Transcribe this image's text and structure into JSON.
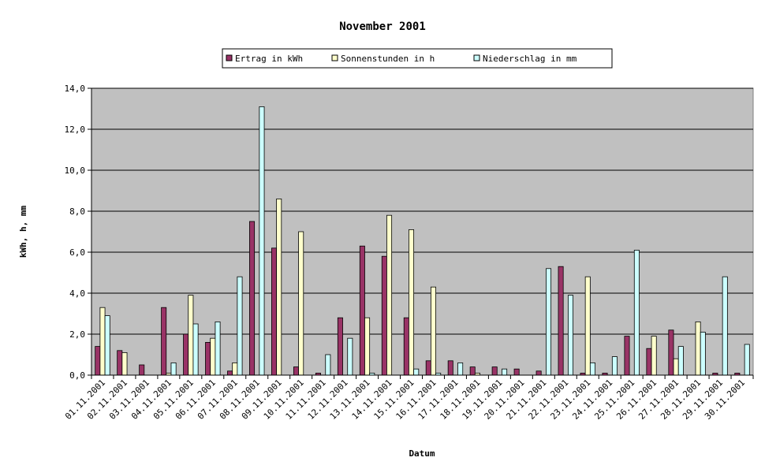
{
  "chart_data": {
    "type": "bar",
    "title": "November 2001",
    "xlabel": "Datum",
    "ylabel": "kWh, h, mm",
    "ylim": [
      0,
      14
    ],
    "yticks": [
      "0,0",
      "2,0",
      "4,0",
      "6,0",
      "8,0",
      "10,0",
      "12,0",
      "14,0"
    ],
    "grid": true,
    "legend_position": "top-center",
    "categories": [
      "01.11.2001",
      "02.11.2001",
      "03.11.2001",
      "04.11.2001",
      "05.11.2001",
      "06.11.2001",
      "07.11.2001",
      "08.11.2001",
      "09.11.2001",
      "10.11.2001",
      "11.11.2001",
      "12.11.2001",
      "13.11.2001",
      "14.11.2001",
      "15.11.2001",
      "16.11.2001",
      "17.11.2001",
      "18.11.2001",
      "19.11.2001",
      "20.11.2001",
      "21.11.2001",
      "22.11.2001",
      "23.11.2001",
      "24.11.2001",
      "25.11.2001",
      "26.11.2001",
      "27.11.2001",
      "28.11.2001",
      "29.11.2001",
      "30.11.2001"
    ],
    "series": [
      {
        "name": "Ertrag in kWh",
        "color": "#993366",
        "values": [
          1.4,
          1.2,
          0.5,
          3.3,
          2.0,
          1.6,
          0.2,
          7.5,
          6.2,
          0.4,
          0.1,
          2.8,
          6.3,
          5.8,
          2.8,
          0.7,
          0.7,
          0.4,
          0.4,
          0.3,
          0.2,
          5.3,
          0.1,
          0.1,
          1.9,
          1.3,
          2.2,
          0.0,
          0.1,
          0.1
        ]
      },
      {
        "name": "Sonnenstunden in h",
        "color": "#ffffcc",
        "values": [
          3.3,
          1.1,
          0.0,
          0.1,
          3.9,
          1.8,
          0.6,
          0.0,
          8.6,
          7.0,
          0.0,
          0.0,
          2.8,
          7.8,
          7.1,
          4.3,
          0.0,
          0.1,
          0.0,
          0.0,
          0.0,
          0.0,
          4.8,
          0.0,
          0.0,
          1.9,
          0.8,
          2.6,
          0.0,
          0.0
        ]
      },
      {
        "name": "Niederschlag in mm",
        "color": "#ccffff",
        "values": [
          2.9,
          0.0,
          0.0,
          0.6,
          2.5,
          2.6,
          4.8,
          13.1,
          0.0,
          0.0,
          1.0,
          1.8,
          0.1,
          0.0,
          0.3,
          0.1,
          0.6,
          0.0,
          0.3,
          0.0,
          5.2,
          3.9,
          0.6,
          0.9,
          6.1,
          0.0,
          1.4,
          2.1,
          4.8,
          1.5
        ]
      }
    ],
    "plot_background": "#c0c0c0"
  }
}
